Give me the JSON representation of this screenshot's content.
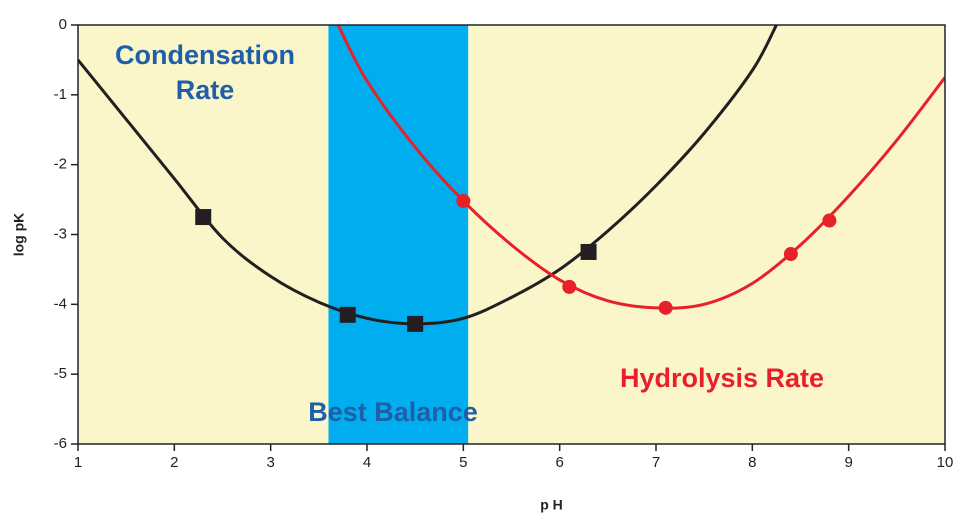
{
  "chart_data": {
    "type": "line",
    "xlabel": "p H",
    "ylabel": "log pK",
    "xlim": [
      1,
      10
    ],
    "ylim": [
      -6,
      0
    ],
    "xticks": [
      1,
      2,
      3,
      4,
      5,
      6,
      7,
      8,
      9,
      10
    ],
    "yticks": [
      0,
      -1,
      -2,
      -3,
      -4,
      -5,
      -6
    ],
    "grid": false,
    "background": "#fbf6c9",
    "band": {
      "x": [
        3.6,
        5.05
      ],
      "color": "#00aeef"
    },
    "series": [
      {
        "color": "#231f20",
        "marker": "square",
        "x": [
          1,
          1.5,
          2,
          2.5,
          3,
          3.5,
          4,
          4.5,
          5,
          5.5,
          6,
          6.5,
          7,
          7.5,
          8,
          8.25
        ],
        "values": [
          -0.5,
          -1.35,
          -2.2,
          -3.05,
          -3.6,
          -3.97,
          -4.2,
          -4.28,
          -4.2,
          -3.9,
          -3.5,
          -2.95,
          -2.3,
          -1.55,
          -0.65,
          0
        ],
        "marker_x": [
          2.3,
          3.8,
          4.5,
          6.3
        ],
        "marker_values": [
          -2.75,
          -4.15,
          -4.28,
          -3.25
        ]
      },
      {
        "color": "#e8202a",
        "marker": "circle",
        "x": [
          3.7,
          4,
          4.5,
          5,
          5.5,
          6,
          6.5,
          7,
          7.5,
          8,
          8.5,
          9,
          9.5,
          10
        ],
        "values": [
          0,
          -0.8,
          -1.75,
          -2.52,
          -3.15,
          -3.65,
          -3.95,
          -4.05,
          -4.0,
          -3.7,
          -3.15,
          -2.45,
          -1.65,
          -0.75
        ],
        "marker_x": [
          5,
          6.1,
          7.1,
          8.4,
          8.8
        ],
        "marker_values": [
          -2.52,
          -3.75,
          -4.05,
          -3.28,
          -2.8
        ]
      }
    ],
    "annotations": [
      {
        "lines": [
          "Condensation",
          "Rate"
        ],
        "color": "#1f5fa8"
      },
      {
        "lines": [
          "Best Balance"
        ],
        "color": "#1f5fa8"
      },
      {
        "lines": [
          "Hydrolysis Rate"
        ],
        "color": "#e8202a"
      }
    ]
  }
}
